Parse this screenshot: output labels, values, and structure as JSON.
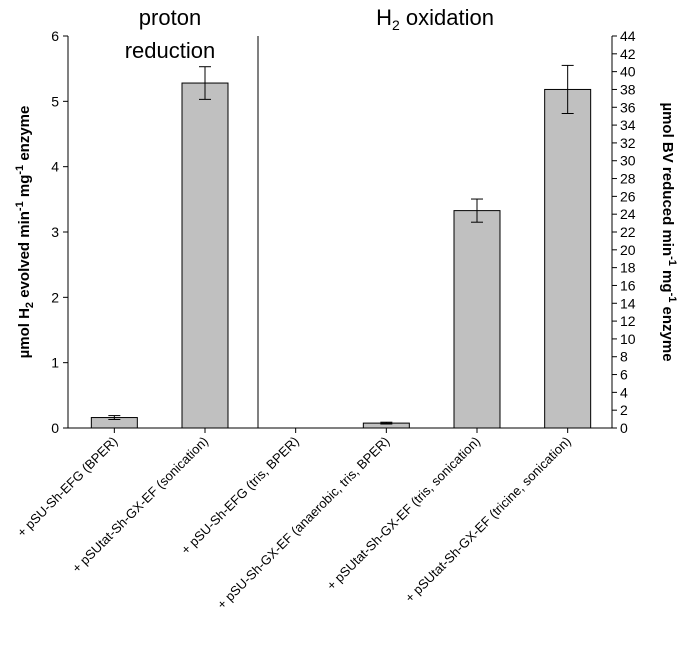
{
  "chart_data": {
    "type": "bar",
    "section_titles": {
      "left_line1": "proton",
      "left_line2": "reduction",
      "right_prefix": "H",
      "right_sub": "2",
      "right_suffix": " oxidation"
    },
    "ylabel_left": {
      "a": "µmol H",
      "a_sub": "2",
      "b": " evolved min",
      "b_sup": "-1",
      "c": " mg",
      "c_sup": "-1",
      "d": " enzyme"
    },
    "ylabel_right": {
      "a": "µmol BV reduced min",
      "a_sup": "-1",
      "b": " mg",
      "b_sup": "-1",
      "c": " enzyme"
    },
    "ylim_left": [
      0,
      6
    ],
    "yticks_left": [
      "0",
      "1",
      "2",
      "3",
      "4",
      "5",
      "6"
    ],
    "ylim_right": [
      0,
      44
    ],
    "yticks_right": [
      "0",
      "2",
      "4",
      "6",
      "8",
      "10",
      "12",
      "14",
      "16",
      "18",
      "20",
      "22",
      "24",
      "26",
      "28",
      "30",
      "32",
      "34",
      "36",
      "38",
      "40",
      "42",
      "44"
    ],
    "categories": [
      "+ pSU-Sh-EFG (BPER)",
      "+ pSUtat-Sh-GX-EF (sonication)",
      "+ pSU-Sh-EFG (tris, BPER)",
      "+ pSU-Sh-GX-EF (anaerobic, tris, BPER)",
      "+ pSUtat-Sh-GX-EF (tris, sonication)",
      "+ pSUtat-Sh-GX-EF (tricine, sonication)"
    ],
    "axis_for_category": [
      "left",
      "left",
      "right",
      "right",
      "right",
      "right"
    ],
    "values": [
      0.16,
      5.28,
      0,
      0.55,
      24.4,
      38.0
    ],
    "errors": [
      0.03,
      0.25,
      0,
      0.1,
      1.3,
      2.7
    ],
    "bar_color": "#c0c0c0",
    "grid": false
  }
}
